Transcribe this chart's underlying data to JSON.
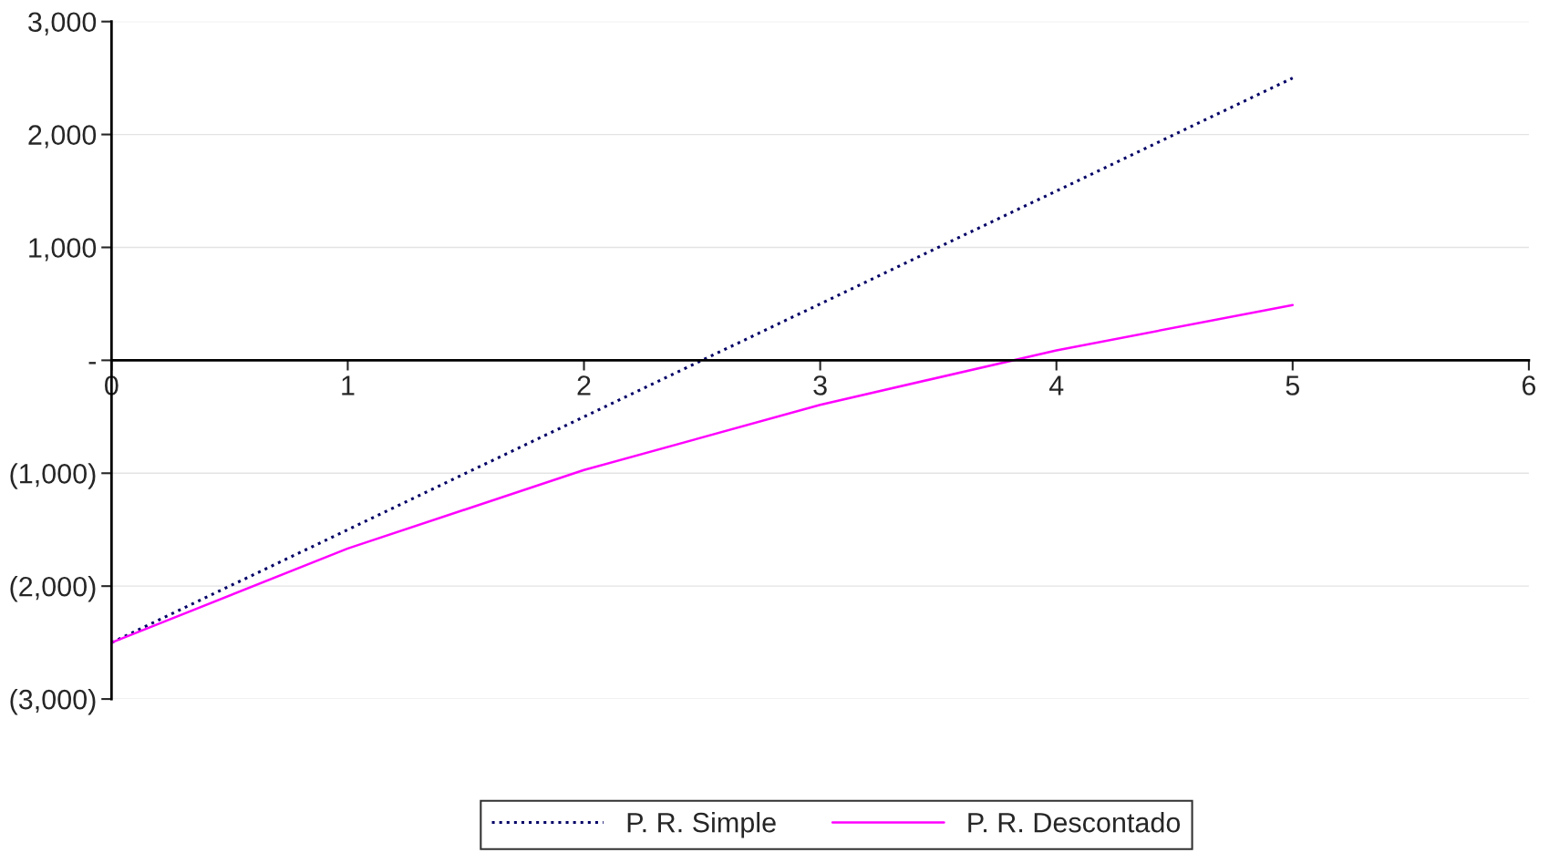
{
  "chart_data": {
    "type": "line",
    "x": [
      0,
      1,
      2,
      3,
      4,
      5
    ],
    "series": [
      {
        "name": "P. R. Simple",
        "color": "#000066",
        "values": [
          -2500,
          -1500,
          -500,
          500,
          1500,
          2500
        ],
        "line_style": "dotted"
      },
      {
        "name": "P. R. Descontado",
        "color": "#ff00ff",
        "values": [
          -2500,
          -1667,
          -972,
          -394,
          88,
          490
        ],
        "line_style": "solid"
      }
    ],
    "xlim": [
      0,
      6
    ],
    "xticks": [
      0,
      1,
      2,
      3,
      4,
      5,
      6
    ],
    "ylim": [
      -3000,
      3000
    ],
    "yticks": [
      {
        "value": -3000,
        "label": "(3,000)"
      },
      {
        "value": -2000,
        "label": "(2,000)"
      },
      {
        "value": -1000,
        "label": "(1,000)"
      },
      {
        "value": 0,
        "label": "-"
      },
      {
        "value": 1000,
        "label": "1,000"
      },
      {
        "value": 2000,
        "label": "2,000"
      },
      {
        "value": 3000,
        "label": "3,000"
      }
    ],
    "grid": "y",
    "legend": "bottom",
    "marker": "none"
  }
}
